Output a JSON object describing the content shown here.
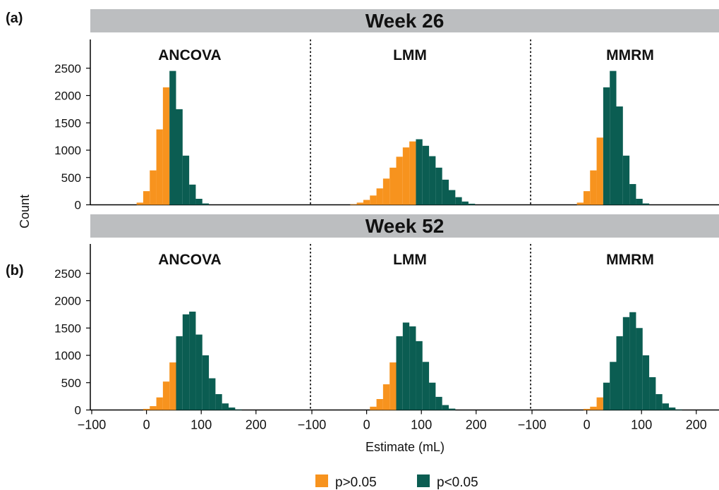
{
  "chart_data": {
    "type": "bar",
    "panel_labels": [
      "(a)",
      "(b)"
    ],
    "strip_titles": [
      "Week 26",
      "Week 52"
    ],
    "facet_titles": [
      "ANCOVA",
      "LMM",
      "MMRM"
    ],
    "xlabel": "Estimate (mL)",
    "ylabel": "Count",
    "xlim": [
      -100,
      250
    ],
    "ylim": [
      0,
      2800
    ],
    "x_ticks": [
      -100,
      0,
      100,
      200
    ],
    "y_ticks": [
      0,
      500,
      1000,
      1500,
      2000,
      2500
    ],
    "bin_width": 12,
    "legend": [
      {
        "label": "p>0.05",
        "color": "#F7931E"
      },
      {
        "label": "p<0.05",
        "color": "#0B5D52"
      }
    ],
    "colors": {
      "nonsig": "#F7931E",
      "sig": "#0B5D52",
      "strip": "#BCBEC0"
    },
    "weeks": [
      {
        "week": "Week 26",
        "panels": [
          {
            "method": "ANCOVA",
            "bins": [
              {
                "x": -12,
                "count": 40,
                "sig": false
              },
              {
                "x": 0,
                "count": 250,
                "sig": false
              },
              {
                "x": 12,
                "count": 630,
                "sig": false
              },
              {
                "x": 24,
                "count": 1380,
                "sig": false
              },
              {
                "x": 36,
                "count": 2150,
                "sig": false
              },
              {
                "x": 48,
                "count": 2450,
                "sig": true
              },
              {
                "x": 60,
                "count": 1750,
                "sig": true
              },
              {
                "x": 72,
                "count": 900,
                "sig": true
              },
              {
                "x": 84,
                "count": 370,
                "sig": true
              },
              {
                "x": 96,
                "count": 110,
                "sig": true
              },
              {
                "x": 108,
                "count": 25,
                "sig": true
              }
            ]
          },
          {
            "method": "LMM",
            "bins": [
              {
                "x": -24,
                "count": 10,
                "sig": false
              },
              {
                "x": -12,
                "count": 40,
                "sig": false
              },
              {
                "x": 0,
                "count": 90,
                "sig": false
              },
              {
                "x": 12,
                "count": 170,
                "sig": false
              },
              {
                "x": 24,
                "count": 300,
                "sig": false
              },
              {
                "x": 36,
                "count": 480,
                "sig": false
              },
              {
                "x": 48,
                "count": 680,
                "sig": false
              },
              {
                "x": 60,
                "count": 880,
                "sig": false
              },
              {
                "x": 72,
                "count": 1050,
                "sig": false
              },
              {
                "x": 84,
                "count": 1160,
                "sig": false
              },
              {
                "x": 96,
                "count": 1200,
                "sig": true
              },
              {
                "x": 108,
                "count": 1080,
                "sig": true
              },
              {
                "x": 120,
                "count": 890,
                "sig": true
              },
              {
                "x": 132,
                "count": 680,
                "sig": true
              },
              {
                "x": 144,
                "count": 460,
                "sig": true
              },
              {
                "x": 156,
                "count": 270,
                "sig": true
              },
              {
                "x": 168,
                "count": 140,
                "sig": true
              },
              {
                "x": 180,
                "count": 60,
                "sig": true
              },
              {
                "x": 192,
                "count": 20,
                "sig": true
              }
            ]
          },
          {
            "method": "MMRM",
            "bins": [
              {
                "x": -12,
                "count": 40,
                "sig": false
              },
              {
                "x": 0,
                "count": 250,
                "sig": false
              },
              {
                "x": 12,
                "count": 630,
                "sig": false
              },
              {
                "x": 24,
                "count": 1230,
                "sig": false
              },
              {
                "x": 36,
                "count": 2150,
                "sig": true
              },
              {
                "x": 48,
                "count": 2450,
                "sig": true
              },
              {
                "x": 60,
                "count": 1800,
                "sig": true
              },
              {
                "x": 72,
                "count": 900,
                "sig": true
              },
              {
                "x": 84,
                "count": 380,
                "sig": true
              },
              {
                "x": 96,
                "count": 110,
                "sig": true
              },
              {
                "x": 108,
                "count": 25,
                "sig": true
              }
            ]
          }
        ]
      },
      {
        "week": "Week 52",
        "panels": [
          {
            "method": "ANCOVA",
            "bins": [
              {
                "x": 0,
                "count": 20,
                "sig": false
              },
              {
                "x": 12,
                "count": 70,
                "sig": false
              },
              {
                "x": 24,
                "count": 230,
                "sig": false
              },
              {
                "x": 36,
                "count": 520,
                "sig": false
              },
              {
                "x": 48,
                "count": 870,
                "sig": false
              },
              {
                "x": 60,
                "count": 1350,
                "sig": true
              },
              {
                "x": 72,
                "count": 1750,
                "sig": true
              },
              {
                "x": 84,
                "count": 1800,
                "sig": true
              },
              {
                "x": 96,
                "count": 1380,
                "sig": true
              },
              {
                "x": 108,
                "count": 1000,
                "sig": true
              },
              {
                "x": 120,
                "count": 580,
                "sig": true
              },
              {
                "x": 132,
                "count": 290,
                "sig": true
              },
              {
                "x": 144,
                "count": 120,
                "sig": true
              },
              {
                "x": 156,
                "count": 45,
                "sig": true
              },
              {
                "x": 168,
                "count": 10,
                "sig": true
              }
            ]
          },
          {
            "method": "LMM",
            "bins": [
              {
                "x": 12,
                "count": 60,
                "sig": false
              },
              {
                "x": 24,
                "count": 200,
                "sig": false
              },
              {
                "x": 36,
                "count": 470,
                "sig": false
              },
              {
                "x": 48,
                "count": 870,
                "sig": false
              },
              {
                "x": 60,
                "count": 1350,
                "sig": true
              },
              {
                "x": 72,
                "count": 1600,
                "sig": true
              },
              {
                "x": 84,
                "count": 1530,
                "sig": true
              },
              {
                "x": 96,
                "count": 1260,
                "sig": true
              },
              {
                "x": 108,
                "count": 880,
                "sig": true
              },
              {
                "x": 120,
                "count": 500,
                "sig": true
              },
              {
                "x": 132,
                "count": 240,
                "sig": true
              },
              {
                "x": 144,
                "count": 90,
                "sig": true
              },
              {
                "x": 156,
                "count": 25,
                "sig": true
              }
            ]
          },
          {
            "method": "MMRM",
            "bins": [
              {
                "x": 0,
                "count": 20,
                "sig": false
              },
              {
                "x": 12,
                "count": 60,
                "sig": false
              },
              {
                "x": 24,
                "count": 230,
                "sig": false
              },
              {
                "x": 36,
                "count": 500,
                "sig": true
              },
              {
                "x": 48,
                "count": 880,
                "sig": true
              },
              {
                "x": 60,
                "count": 1350,
                "sig": true
              },
              {
                "x": 72,
                "count": 1700,
                "sig": true
              },
              {
                "x": 84,
                "count": 1790,
                "sig": true
              },
              {
                "x": 96,
                "count": 1500,
                "sig": true
              },
              {
                "x": 108,
                "count": 1000,
                "sig": true
              },
              {
                "x": 120,
                "count": 600,
                "sig": true
              },
              {
                "x": 132,
                "count": 290,
                "sig": true
              },
              {
                "x": 144,
                "count": 120,
                "sig": true
              },
              {
                "x": 156,
                "count": 45,
                "sig": true
              },
              {
                "x": 168,
                "count": 10,
                "sig": true
              }
            ]
          }
        ]
      }
    ]
  }
}
